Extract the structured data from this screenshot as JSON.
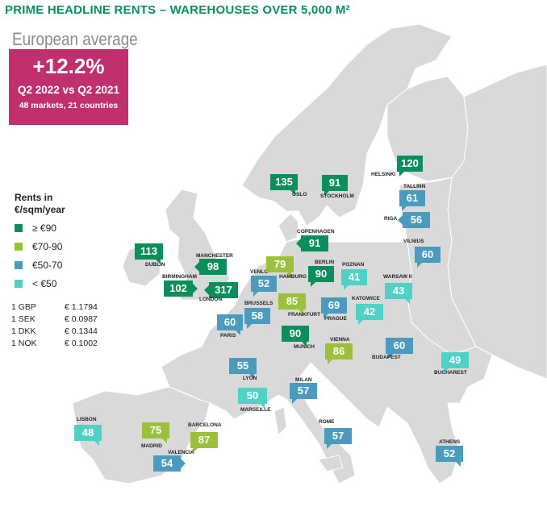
{
  "title": "PRIME HEADLINE RENTS – WAREHOUSES OVER 5,000 M²",
  "average": {
    "heading": "European average",
    "value": "+12.2%",
    "period": "Q2 2022 vs Q2 2021",
    "markets": "48 markets, 21 countries",
    "color": "#c0306f"
  },
  "legend": {
    "title": "Rents in €/sqm/year",
    "items": [
      {
        "label": "≥ €90",
        "color": "#0a8f5a"
      },
      {
        "label": "€70-90",
        "color": "#9bc03b"
      },
      {
        "label": "€50-70",
        "color": "#4a9bbd"
      },
      {
        "label": "< €50",
        "color": "#4fd1c5"
      }
    ]
  },
  "exchange_rates": [
    {
      "from": "1 GBP",
      "rate": "€ 1.1794"
    },
    {
      "from": "1 SEK",
      "rate": "€ 0.0987"
    },
    {
      "from": "1 DKK",
      "rate": "€ 0.1344"
    },
    {
      "from": "1 NOK",
      "rate": "€ 0.1002"
    }
  ],
  "cities": [
    {
      "name": "HELSINKI",
      "rent": "120",
      "band": 0
    },
    {
      "name": "OSLO",
      "rent": "135",
      "band": 0
    },
    {
      "name": "STOCKHOLM",
      "rent": "91",
      "band": 0
    },
    {
      "name": "TALLINN",
      "rent": "61",
      "band": 2
    },
    {
      "name": "RIGA",
      "rent": "56",
      "band": 2
    },
    {
      "name": "COPENHAGEN",
      "rent": "91",
      "band": 0
    },
    {
      "name": "VILNIUS",
      "rent": "60",
      "band": 2
    },
    {
      "name": "DUBLIN",
      "rent": "113",
      "band": 0
    },
    {
      "name": "MANCHESTER",
      "rent": "98",
      "band": 0
    },
    {
      "name": "VENLO",
      "rent": "52",
      "band": 2
    },
    {
      "name": "HAMBURG",
      "rent": "79",
      "band": 1
    },
    {
      "name": "BERLIN",
      "rent": "90",
      "band": 0
    },
    {
      "name": "POZNAN",
      "rent": "41",
      "band": 3
    },
    {
      "name": "WARSAW II",
      "rent": "43",
      "band": 3
    },
    {
      "name": "BIRMINGHAM",
      "rent": "102",
      "band": 0
    },
    {
      "name": "LONDON",
      "rent": "317",
      "band": 0
    },
    {
      "name": "BRUSSELS",
      "rent": "58",
      "band": 2
    },
    {
      "name": "FRANKFURT",
      "rent": "85",
      "band": 1
    },
    {
      "name": "PRAGUE",
      "rent": "69",
      "band": 2
    },
    {
      "name": "KATOWICE",
      "rent": "42",
      "band": 3
    },
    {
      "name": "PARIS",
      "rent": "60",
      "band": 2
    },
    {
      "name": "MUNICH",
      "rent": "90",
      "band": 0
    },
    {
      "name": "VIENNA",
      "rent": "86",
      "band": 1
    },
    {
      "name": "BUDAPEST",
      "rent": "60",
      "band": 2
    },
    {
      "name": "BUCHAREST",
      "rent": "49",
      "band": 3
    },
    {
      "name": "LYON",
      "rent": "55",
      "band": 2
    },
    {
      "name": "MILAN",
      "rent": "57",
      "band": 2
    },
    {
      "name": "MARSEILLE",
      "rent": "50",
      "band": 3
    },
    {
      "name": "LISBON",
      "rent": "48",
      "band": 3
    },
    {
      "name": "BARCELONA",
      "rent": "87",
      "band": 1
    },
    {
      "name": "MADRID",
      "rent": "75",
      "band": 1
    },
    {
      "name": "VALENCIA",
      "rent": "54",
      "band": 2
    },
    {
      "name": "ROME",
      "rent": "57",
      "band": 2
    },
    {
      "name": "ATHENS",
      "rent": "52",
      "band": 2
    }
  ]
}
